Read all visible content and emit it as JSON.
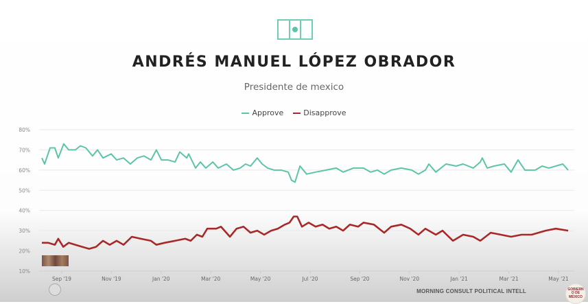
{
  "header": {
    "title": "ANDRÉS MANUEL LÓPEZ OBRADOR",
    "subtitle": "Presidente de mexico",
    "flag_icon": "mexico-flag-icon"
  },
  "footer": {
    "source": "MORNING CONSULT POLITICAL INTELL",
    "logo_text": "GOBIERNO DE MÉXICO"
  },
  "colors": {
    "approve": "#5cc4a8",
    "disapprove": "#a82828",
    "grid": "#e6e6e6"
  },
  "chart_data": {
    "type": "line",
    "title": "ANDRÉS MANUEL LÓPEZ OBRADOR",
    "subtitle": "Presidente de mexico",
    "x_unit": "months since Sep 1 2019",
    "xlim": [
      -1.0,
      20.65
    ],
    "ylim": [
      10,
      80
    ],
    "grid": true,
    "legend_placement": "top-center",
    "y_ticks": [
      {
        "v": 80,
        "label": "80%"
      },
      {
        "v": 70,
        "label": "70%"
      },
      {
        "v": 60,
        "label": "60%"
      },
      {
        "v": 50,
        "label": "50%"
      },
      {
        "v": 40,
        "label": "40%"
      },
      {
        "v": 30,
        "label": "30%"
      },
      {
        "v": 20,
        "label": "20%"
      },
      {
        "v": 10,
        "label": "10%"
      }
    ],
    "x_ticks": [
      {
        "v": 0,
        "label": "Sep '19"
      },
      {
        "v": 2,
        "label": "Nov '19"
      },
      {
        "v": 4,
        "label": "Jan '20"
      },
      {
        "v": 6,
        "label": "Mar '20"
      },
      {
        "v": 8,
        "label": "May '20"
      },
      {
        "v": 10,
        "label": "Jul '20"
      },
      {
        "v": 12,
        "label": "Sep '20"
      },
      {
        "v": 14,
        "label": "Nov '20"
      },
      {
        "v": 16,
        "label": "Jan '21"
      },
      {
        "v": 18,
        "label": "Mar '21"
      },
      {
        "v": 20,
        "label": "May '21"
      }
    ],
    "series": [
      {
        "name": "Approve",
        "color": "#5cc4a8",
        "points": [
          [
            -0.8,
            66
          ],
          [
            -0.69,
            63
          ],
          [
            -0.47,
            71
          ],
          [
            -0.28,
            71
          ],
          [
            -0.14,
            66
          ],
          [
            0.08,
            73
          ],
          [
            0.28,
            70
          ],
          [
            0.55,
            70
          ],
          [
            0.75,
            72
          ],
          [
            0.97,
            71
          ],
          [
            1.24,
            67
          ],
          [
            1.44,
            70
          ],
          [
            1.66,
            66
          ],
          [
            1.99,
            68
          ],
          [
            2.21,
            65
          ],
          [
            2.49,
            66
          ],
          [
            2.76,
            63
          ],
          [
            3.04,
            66
          ],
          [
            3.31,
            67
          ],
          [
            3.59,
            65
          ],
          [
            3.81,
            70
          ],
          [
            4.01,
            65
          ],
          [
            4.28,
            65
          ],
          [
            4.56,
            64
          ],
          [
            4.75,
            69
          ],
          [
            5.03,
            66
          ],
          [
            5.11,
            68
          ],
          [
            5.39,
            61
          ],
          [
            5.58,
            64
          ],
          [
            5.8,
            61
          ],
          [
            6.08,
            64
          ],
          [
            6.3,
            61
          ],
          [
            6.63,
            63
          ],
          [
            6.91,
            60
          ],
          [
            7.18,
            61
          ],
          [
            7.4,
            63
          ],
          [
            7.6,
            62
          ],
          [
            7.87,
            66
          ],
          [
            8.07,
            63
          ],
          [
            8.29,
            61
          ],
          [
            8.56,
            60
          ],
          [
            8.84,
            60
          ],
          [
            9.12,
            59
          ],
          [
            9.25,
            55
          ],
          [
            9.39,
            54
          ],
          [
            9.59,
            62
          ],
          [
            9.86,
            58
          ],
          [
            10.22,
            59
          ],
          [
            10.64,
            60
          ],
          [
            11.05,
            61
          ],
          [
            11.33,
            59
          ],
          [
            11.74,
            61
          ],
          [
            12.15,
            61
          ],
          [
            12.43,
            59
          ],
          [
            12.71,
            60
          ],
          [
            12.98,
            58
          ],
          [
            13.26,
            60
          ],
          [
            13.67,
            61
          ],
          [
            14.09,
            60
          ],
          [
            14.36,
            58
          ],
          [
            14.64,
            60
          ],
          [
            14.78,
            63
          ],
          [
            15.06,
            59
          ],
          [
            15.47,
            63
          ],
          [
            15.88,
            62
          ],
          [
            16.16,
            63
          ],
          [
            16.57,
            61
          ],
          [
            16.85,
            64
          ],
          [
            16.93,
            66
          ],
          [
            17.13,
            61
          ],
          [
            17.4,
            62
          ],
          [
            17.82,
            63
          ],
          [
            18.09,
            59
          ],
          [
            18.37,
            65
          ],
          [
            18.65,
            60
          ],
          [
            19.06,
            60
          ],
          [
            19.34,
            62
          ],
          [
            19.61,
            61
          ],
          [
            19.89,
            62
          ],
          [
            20.17,
            63
          ],
          [
            20.39,
            60
          ]
        ]
      },
      {
        "name": "Disapprove",
        "color": "#a82828",
        "points": [
          [
            -0.8,
            24
          ],
          [
            -0.55,
            24
          ],
          [
            -0.28,
            23
          ],
          [
            -0.14,
            26
          ],
          [
            0.06,
            22
          ],
          [
            0.28,
            24
          ],
          [
            0.55,
            23
          ],
          [
            0.83,
            22
          ],
          [
            1.1,
            21
          ],
          [
            1.38,
            22
          ],
          [
            1.66,
            25
          ],
          [
            1.93,
            23
          ],
          [
            2.21,
            25
          ],
          [
            2.49,
            23
          ],
          [
            2.82,
            27
          ],
          [
            3.18,
            26
          ],
          [
            3.59,
            25
          ],
          [
            3.81,
            23
          ],
          [
            4.14,
            24
          ],
          [
            4.56,
            25
          ],
          [
            4.97,
            26
          ],
          [
            5.19,
            25
          ],
          [
            5.44,
            28
          ],
          [
            5.66,
            27
          ],
          [
            5.86,
            31
          ],
          [
            6.22,
            31
          ],
          [
            6.41,
            32
          ],
          [
            6.77,
            27
          ],
          [
            7.04,
            31
          ],
          [
            7.32,
            32
          ],
          [
            7.6,
            29
          ],
          [
            7.87,
            30
          ],
          [
            8.15,
            28
          ],
          [
            8.43,
            30
          ],
          [
            8.7,
            31
          ],
          [
            8.98,
            33
          ],
          [
            9.17,
            34
          ],
          [
            9.34,
            37
          ],
          [
            9.48,
            37
          ],
          [
            9.67,
            32
          ],
          [
            9.94,
            34
          ],
          [
            10.22,
            32
          ],
          [
            10.5,
            33
          ],
          [
            10.77,
            31
          ],
          [
            11.05,
            32
          ],
          [
            11.33,
            30
          ],
          [
            11.6,
            33
          ],
          [
            11.93,
            32
          ],
          [
            12.15,
            34
          ],
          [
            12.57,
            33
          ],
          [
            12.98,
            29
          ],
          [
            13.26,
            32
          ],
          [
            13.67,
            33
          ],
          [
            14.03,
            31
          ],
          [
            14.36,
            28
          ],
          [
            14.64,
            31
          ],
          [
            15.06,
            28
          ],
          [
            15.33,
            30
          ],
          [
            15.75,
            25
          ],
          [
            16.16,
            28
          ],
          [
            16.57,
            27
          ],
          [
            16.85,
            25
          ],
          [
            17.27,
            29
          ],
          [
            17.68,
            28
          ],
          [
            18.09,
            27
          ],
          [
            18.51,
            28
          ],
          [
            18.92,
            28
          ],
          [
            19.48,
            30
          ],
          [
            19.89,
            31
          ],
          [
            20.39,
            30
          ]
        ]
      }
    ]
  }
}
